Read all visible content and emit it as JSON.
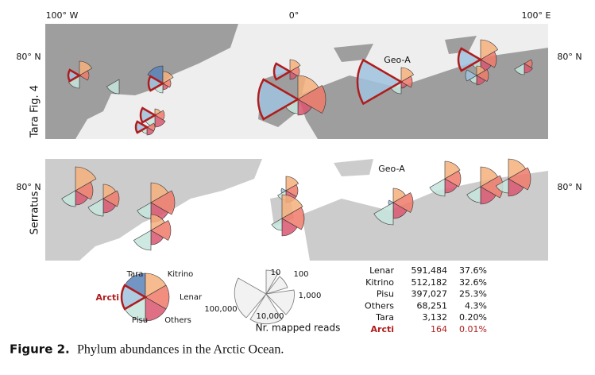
{
  "panels": [
    {
      "label": "Tara Fig. 4"
    },
    {
      "label": "Serratus"
    }
  ],
  "longitude_labels": [
    "100° W",
    "0°",
    "100° E"
  ],
  "latitude_label": "80° N",
  "site_label": "Geo-A",
  "phylum_legend": {
    "Tara": "Tara",
    "Kitrino": "Kitrino",
    "Arcti": "Arcti",
    "Lenar": "Lenar",
    "Pisu": "Pisu",
    "Others": "Others"
  },
  "size_legend": {
    "title": "Nr. mapped reads",
    "ticks": [
      "10",
      "100",
      "1,000",
      "10,000",
      "100,000"
    ]
  },
  "table": {
    "rows": [
      [
        "Lenar",
        "591,484",
        "37.6%"
      ],
      [
        "Kitrino",
        "512,182",
        "32.6%"
      ],
      [
        "Pisu",
        "397,027",
        "25.3%"
      ],
      [
        "Others",
        "68,251",
        "4.3%"
      ],
      [
        "Tara",
        "3,132",
        "0.20%"
      ],
      [
        "Arcti",
        "164",
        "0.01%"
      ]
    ]
  },
  "caption": {
    "label": "Figure 2.",
    "text": "Phylum abundances in the Arctic Ocean."
  }
}
